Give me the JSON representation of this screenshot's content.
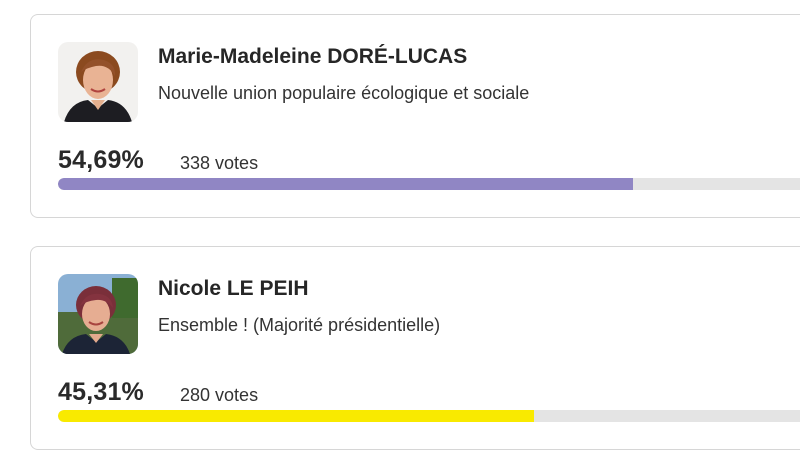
{
  "candidates": [
    {
      "name": "Marie-Madeleine DORÉ-LUCAS",
      "party": "Nouvelle union populaire écologique et sociale",
      "percent": "54,69%",
      "votes_count": "338",
      "votes_label": "votes",
      "bar_fraction": 0.7567,
      "bar_color": "#9086c4"
    },
    {
      "name": "Nicole LE PEIH",
      "party": "Ensemble ! (Majorité présidentielle)",
      "percent": "45,31%",
      "votes_count": "280",
      "votes_label": "votes",
      "bar_fraction": 0.6268,
      "bar_color": "#f9ea00"
    }
  ]
}
